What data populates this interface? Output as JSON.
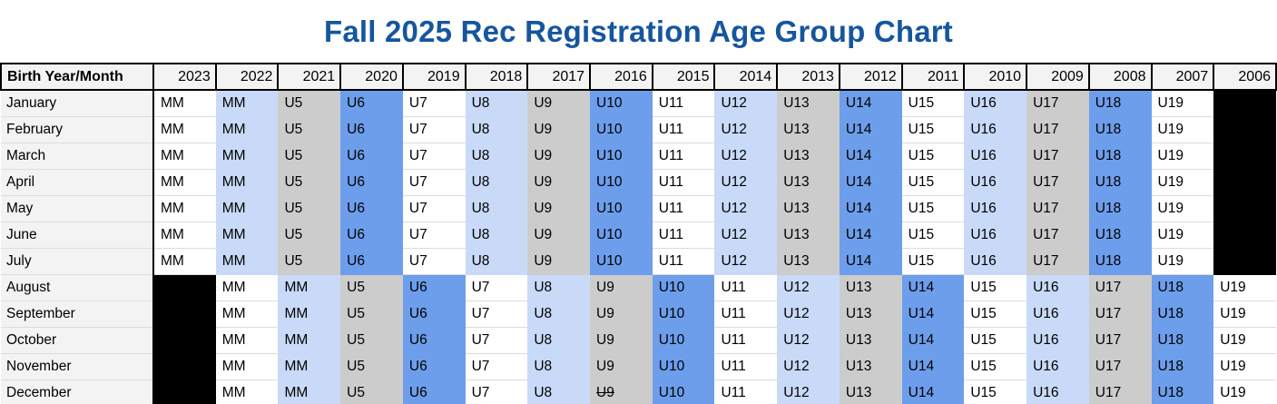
{
  "title": {
    "text": "Fall 2025 Rec Registration Age Group Chart"
  },
  "colors": {
    "title": "#15569e",
    "header_bg": "#f3f3f3",
    "month_bg": "#f3f3f3",
    "gridline": "#dcdcdc",
    "hard_border": "#000000",
    "page_bg": "#ffffff"
  },
  "palette": {
    "w": "#ffffff",
    "lb": "#c9daf8",
    "g": "#cccccc",
    "b": "#6d9eeb",
    "k": "#000000"
  },
  "header": {
    "corner_label": "Birth Year/Month",
    "years": [
      "2023",
      "2022",
      "2021",
      "2020",
      "2019",
      "2018",
      "2017",
      "2016",
      "2015",
      "2014",
      "2013",
      "2012",
      "2011",
      "2010",
      "2009",
      "2008",
      "2007",
      "2006"
    ]
  },
  "rows": [
    {
      "month": "January",
      "cells": [
        {
          "t": "MM",
          "c": "w"
        },
        {
          "t": "MM",
          "c": "lb"
        },
        {
          "t": "U5",
          "c": "g"
        },
        {
          "t": "U6",
          "c": "b"
        },
        {
          "t": "U7",
          "c": "w"
        },
        {
          "t": "U8",
          "c": "lb"
        },
        {
          "t": "U9",
          "c": "g"
        },
        {
          "t": "U10",
          "c": "b"
        },
        {
          "t": "U11",
          "c": "w"
        },
        {
          "t": "U12",
          "c": "lb"
        },
        {
          "t": "U13",
          "c": "g"
        },
        {
          "t": "U14",
          "c": "b"
        },
        {
          "t": "U15",
          "c": "w"
        },
        {
          "t": "U16",
          "c": "lb"
        },
        {
          "t": "U17",
          "c": "g"
        },
        {
          "t": "U18",
          "c": "b"
        },
        {
          "t": "U19",
          "c": "w"
        },
        {
          "t": "",
          "c": "k"
        }
      ]
    },
    {
      "month": "February",
      "cells": [
        {
          "t": "MM",
          "c": "w"
        },
        {
          "t": "MM",
          "c": "lb"
        },
        {
          "t": "U5",
          "c": "g"
        },
        {
          "t": "U6",
          "c": "b"
        },
        {
          "t": "U7",
          "c": "w"
        },
        {
          "t": "U8",
          "c": "lb"
        },
        {
          "t": "U9",
          "c": "g"
        },
        {
          "t": "U10",
          "c": "b"
        },
        {
          "t": "U11",
          "c": "w"
        },
        {
          "t": "U12",
          "c": "lb"
        },
        {
          "t": "U13",
          "c": "g"
        },
        {
          "t": "U14",
          "c": "b"
        },
        {
          "t": "U15",
          "c": "w"
        },
        {
          "t": "U16",
          "c": "lb"
        },
        {
          "t": "U17",
          "c": "g"
        },
        {
          "t": "U18",
          "c": "b"
        },
        {
          "t": "U19",
          "c": "w"
        },
        {
          "t": "",
          "c": "k"
        }
      ]
    },
    {
      "month": "March",
      "cells": [
        {
          "t": "MM",
          "c": "w"
        },
        {
          "t": "MM",
          "c": "lb"
        },
        {
          "t": "U5",
          "c": "g"
        },
        {
          "t": "U6",
          "c": "b"
        },
        {
          "t": "U7",
          "c": "w"
        },
        {
          "t": "U8",
          "c": "lb"
        },
        {
          "t": "U9",
          "c": "g"
        },
        {
          "t": "U10",
          "c": "b"
        },
        {
          "t": "U11",
          "c": "w"
        },
        {
          "t": "U12",
          "c": "lb"
        },
        {
          "t": "U13",
          "c": "g"
        },
        {
          "t": "U14",
          "c": "b"
        },
        {
          "t": "U15",
          "c": "w"
        },
        {
          "t": "U16",
          "c": "lb"
        },
        {
          "t": "U17",
          "c": "g"
        },
        {
          "t": "U18",
          "c": "b"
        },
        {
          "t": "U19",
          "c": "w"
        },
        {
          "t": "",
          "c": "k"
        }
      ]
    },
    {
      "month": "April",
      "cells": [
        {
          "t": "MM",
          "c": "w"
        },
        {
          "t": "MM",
          "c": "lb"
        },
        {
          "t": "U5",
          "c": "g"
        },
        {
          "t": "U6",
          "c": "b"
        },
        {
          "t": "U7",
          "c": "w"
        },
        {
          "t": "U8",
          "c": "lb"
        },
        {
          "t": "U9",
          "c": "g"
        },
        {
          "t": "U10",
          "c": "b"
        },
        {
          "t": "U11",
          "c": "w"
        },
        {
          "t": "U12",
          "c": "lb"
        },
        {
          "t": "U13",
          "c": "g"
        },
        {
          "t": "U14",
          "c": "b"
        },
        {
          "t": "U15",
          "c": "w"
        },
        {
          "t": "U16",
          "c": "lb"
        },
        {
          "t": "U17",
          "c": "g"
        },
        {
          "t": "U18",
          "c": "b"
        },
        {
          "t": "U19",
          "c": "w"
        },
        {
          "t": "",
          "c": "k"
        }
      ]
    },
    {
      "month": "May",
      "cells": [
        {
          "t": "MM",
          "c": "w"
        },
        {
          "t": "MM",
          "c": "lb"
        },
        {
          "t": "U5",
          "c": "g"
        },
        {
          "t": "U6",
          "c": "b"
        },
        {
          "t": "U7",
          "c": "w"
        },
        {
          "t": "U8",
          "c": "lb"
        },
        {
          "t": "U9",
          "c": "g"
        },
        {
          "t": "U10",
          "c": "b"
        },
        {
          "t": "U11",
          "c": "w"
        },
        {
          "t": "U12",
          "c": "lb"
        },
        {
          "t": "U13",
          "c": "g"
        },
        {
          "t": "U14",
          "c": "b"
        },
        {
          "t": "U15",
          "c": "w"
        },
        {
          "t": "U16",
          "c": "lb"
        },
        {
          "t": "U17",
          "c": "g"
        },
        {
          "t": "U18",
          "c": "b"
        },
        {
          "t": "U19",
          "c": "w"
        },
        {
          "t": "",
          "c": "k"
        }
      ]
    },
    {
      "month": "June",
      "cells": [
        {
          "t": "MM",
          "c": "w"
        },
        {
          "t": "MM",
          "c": "lb"
        },
        {
          "t": "U5",
          "c": "g"
        },
        {
          "t": "U6",
          "c": "b"
        },
        {
          "t": "U7",
          "c": "w"
        },
        {
          "t": "U8",
          "c": "lb"
        },
        {
          "t": "U9",
          "c": "g"
        },
        {
          "t": "U10",
          "c": "b"
        },
        {
          "t": "U11",
          "c": "w"
        },
        {
          "t": "U12",
          "c": "lb"
        },
        {
          "t": "U13",
          "c": "g"
        },
        {
          "t": "U14",
          "c": "b"
        },
        {
          "t": "U15",
          "c": "w"
        },
        {
          "t": "U16",
          "c": "lb"
        },
        {
          "t": "U17",
          "c": "g"
        },
        {
          "t": "U18",
          "c": "b"
        },
        {
          "t": "U19",
          "c": "w"
        },
        {
          "t": "",
          "c": "k"
        }
      ]
    },
    {
      "month": "July",
      "cells": [
        {
          "t": "MM",
          "c": "w"
        },
        {
          "t": "MM",
          "c": "lb"
        },
        {
          "t": "U5",
          "c": "g"
        },
        {
          "t": "U6",
          "c": "b"
        },
        {
          "t": "U7",
          "c": "w"
        },
        {
          "t": "U8",
          "c": "lb"
        },
        {
          "t": "U9",
          "c": "g"
        },
        {
          "t": "U10",
          "c": "b"
        },
        {
          "t": "U11",
          "c": "w"
        },
        {
          "t": "U12",
          "c": "lb"
        },
        {
          "t": "U13",
          "c": "g"
        },
        {
          "t": "U14",
          "c": "b"
        },
        {
          "t": "U15",
          "c": "w"
        },
        {
          "t": "U16",
          "c": "lb"
        },
        {
          "t": "U17",
          "c": "g"
        },
        {
          "t": "U18",
          "c": "b"
        },
        {
          "t": "U19",
          "c": "w"
        },
        {
          "t": "",
          "c": "k"
        }
      ]
    },
    {
      "month": "August",
      "cells": [
        {
          "t": "",
          "c": "k"
        },
        {
          "t": "MM",
          "c": "w"
        },
        {
          "t": "MM",
          "c": "lb"
        },
        {
          "t": "U5",
          "c": "g"
        },
        {
          "t": "U6",
          "c": "b"
        },
        {
          "t": "U7",
          "c": "w"
        },
        {
          "t": "U8",
          "c": "lb"
        },
        {
          "t": "U9",
          "c": "g"
        },
        {
          "t": "U10",
          "c": "b"
        },
        {
          "t": "U11",
          "c": "w"
        },
        {
          "t": "U12",
          "c": "lb"
        },
        {
          "t": "U13",
          "c": "g"
        },
        {
          "t": "U14",
          "c": "b"
        },
        {
          "t": "U15",
          "c": "w"
        },
        {
          "t": "U16",
          "c": "lb"
        },
        {
          "t": "U17",
          "c": "g"
        },
        {
          "t": "U18",
          "c": "b"
        },
        {
          "t": "U19",
          "c": "w"
        }
      ]
    },
    {
      "month": "September",
      "cells": [
        {
          "t": "",
          "c": "k"
        },
        {
          "t": "MM",
          "c": "w"
        },
        {
          "t": "MM",
          "c": "lb"
        },
        {
          "t": "U5",
          "c": "g"
        },
        {
          "t": "U6",
          "c": "b"
        },
        {
          "t": "U7",
          "c": "w"
        },
        {
          "t": "U8",
          "c": "lb"
        },
        {
          "t": "U9",
          "c": "g"
        },
        {
          "t": "U10",
          "c": "b"
        },
        {
          "t": "U11",
          "c": "w"
        },
        {
          "t": "U12",
          "c": "lb"
        },
        {
          "t": "U13",
          "c": "g"
        },
        {
          "t": "U14",
          "c": "b"
        },
        {
          "t": "U15",
          "c": "w"
        },
        {
          "t": "U16",
          "c": "lb"
        },
        {
          "t": "U17",
          "c": "g"
        },
        {
          "t": "U18",
          "c": "b"
        },
        {
          "t": "U19",
          "c": "w"
        }
      ]
    },
    {
      "month": "October",
      "cells": [
        {
          "t": "",
          "c": "k"
        },
        {
          "t": "MM",
          "c": "w"
        },
        {
          "t": "MM",
          "c": "lb"
        },
        {
          "t": "U5",
          "c": "g"
        },
        {
          "t": "U6",
          "c": "b"
        },
        {
          "t": "U7",
          "c": "w"
        },
        {
          "t": "U8",
          "c": "lb"
        },
        {
          "t": "U9",
          "c": "g"
        },
        {
          "t": "U10",
          "c": "b"
        },
        {
          "t": "U11",
          "c": "w"
        },
        {
          "t": "U12",
          "c": "lb"
        },
        {
          "t": "U13",
          "c": "g"
        },
        {
          "t": "U14",
          "c": "b"
        },
        {
          "t": "U15",
          "c": "w"
        },
        {
          "t": "U16",
          "c": "lb"
        },
        {
          "t": "U17",
          "c": "g"
        },
        {
          "t": "U18",
          "c": "b"
        },
        {
          "t": "U19",
          "c": "w"
        }
      ]
    },
    {
      "month": "November",
      "cells": [
        {
          "t": "",
          "c": "k"
        },
        {
          "t": "MM",
          "c": "w"
        },
        {
          "t": "MM",
          "c": "lb"
        },
        {
          "t": "U5",
          "c": "g"
        },
        {
          "t": "U6",
          "c": "b"
        },
        {
          "t": "U7",
          "c": "w"
        },
        {
          "t": "U8",
          "c": "lb"
        },
        {
          "t": "U9",
          "c": "g"
        },
        {
          "t": "U10",
          "c": "b"
        },
        {
          "t": "U11",
          "c": "w"
        },
        {
          "t": "U12",
          "c": "lb"
        },
        {
          "t": "U13",
          "c": "g"
        },
        {
          "t": "U14",
          "c": "b"
        },
        {
          "t": "U15",
          "c": "w"
        },
        {
          "t": "U16",
          "c": "lb"
        },
        {
          "t": "U17",
          "c": "g"
        },
        {
          "t": "U18",
          "c": "b"
        },
        {
          "t": "U19",
          "c": "w"
        }
      ]
    },
    {
      "month": "December",
      "cells": [
        {
          "t": "",
          "c": "k"
        },
        {
          "t": "MM",
          "c": "w"
        },
        {
          "t": "MM",
          "c": "lb"
        },
        {
          "t": "U5",
          "c": "g"
        },
        {
          "t": "U6",
          "c": "b"
        },
        {
          "t": "U7",
          "c": "w"
        },
        {
          "t": "U8",
          "c": "lb"
        },
        {
          "t": "U9",
          "c": "g",
          "strike": true
        },
        {
          "t": "U10",
          "c": "b"
        },
        {
          "t": "U11",
          "c": "w"
        },
        {
          "t": "U12",
          "c": "lb"
        },
        {
          "t": "U13",
          "c": "g"
        },
        {
          "t": "U14",
          "c": "b"
        },
        {
          "t": "U15",
          "c": "w"
        },
        {
          "t": "U16",
          "c": "lb"
        },
        {
          "t": "U17",
          "c": "g"
        },
        {
          "t": "U18",
          "c": "b"
        },
        {
          "t": "U19",
          "c": "w"
        }
      ]
    }
  ],
  "chart_data": {
    "type": "table",
    "title": "Fall 2025 Rec Registration Age Group Chart",
    "columns": [
      "Birth Year/Month",
      "2023",
      "2022",
      "2021",
      "2020",
      "2019",
      "2018",
      "2017",
      "2016",
      "2015",
      "2014",
      "2013",
      "2012",
      "2011",
      "2010",
      "2009",
      "2008",
      "2007",
      "2006"
    ],
    "rows": [
      [
        "January",
        "MM",
        "MM",
        "U5",
        "U6",
        "U7",
        "U8",
        "U9",
        "U10",
        "U11",
        "U12",
        "U13",
        "U14",
        "U15",
        "U16",
        "U17",
        "U18",
        "U19",
        null
      ],
      [
        "February",
        "MM",
        "MM",
        "U5",
        "U6",
        "U7",
        "U8",
        "U9",
        "U10",
        "U11",
        "U12",
        "U13",
        "U14",
        "U15",
        "U16",
        "U17",
        "U18",
        "U19",
        null
      ],
      [
        "March",
        "MM",
        "MM",
        "U5",
        "U6",
        "U7",
        "U8",
        "U9",
        "U10",
        "U11",
        "U12",
        "U13",
        "U14",
        "U15",
        "U16",
        "U17",
        "U18",
        "U19",
        null
      ],
      [
        "April",
        "MM",
        "MM",
        "U5",
        "U6",
        "U7",
        "U8",
        "U9",
        "U10",
        "U11",
        "U12",
        "U13",
        "U14",
        "U15",
        "U16",
        "U17",
        "U18",
        "U19",
        null
      ],
      [
        "May",
        "MM",
        "MM",
        "U5",
        "U6",
        "U7",
        "U8",
        "U9",
        "U10",
        "U11",
        "U12",
        "U13",
        "U14",
        "U15",
        "U16",
        "U17",
        "U18",
        "U19",
        null
      ],
      [
        "June",
        "MM",
        "MM",
        "U5",
        "U6",
        "U7",
        "U8",
        "U9",
        "U10",
        "U11",
        "U12",
        "U13",
        "U14",
        "U15",
        "U16",
        "U17",
        "U18",
        "U19",
        null
      ],
      [
        "July",
        "MM",
        "MM",
        "U5",
        "U6",
        "U7",
        "U8",
        "U9",
        "U10",
        "U11",
        "U12",
        "U13",
        "U14",
        "U15",
        "U16",
        "U17",
        "U18",
        "U19",
        null
      ],
      [
        "August",
        null,
        "MM",
        "MM",
        "U5",
        "U6",
        "U7",
        "U8",
        "U9",
        "U10",
        "U11",
        "U12",
        "U13",
        "U14",
        "U15",
        "U16",
        "U17",
        "U18",
        "U19"
      ],
      [
        "September",
        null,
        "MM",
        "MM",
        "U5",
        "U6",
        "U7",
        "U8",
        "U9",
        "U10",
        "U11",
        "U12",
        "U13",
        "U14",
        "U15",
        "U16",
        "U17",
        "U18",
        "U19"
      ],
      [
        "October",
        null,
        "MM",
        "MM",
        "U5",
        "U6",
        "U7",
        "U8",
        "U9",
        "U10",
        "U11",
        "U12",
        "U13",
        "U14",
        "U15",
        "U16",
        "U17",
        "U18",
        "U19"
      ],
      [
        "November",
        null,
        "MM",
        "MM",
        "U5",
        "U6",
        "U7",
        "U8",
        "U9",
        "U10",
        "U11",
        "U12",
        "U13",
        "U14",
        "U15",
        "U16",
        "U17",
        "U18",
        "U19"
      ],
      [
        "December",
        null,
        "MM",
        "MM",
        "U5",
        "U6",
        "U7",
        "U8",
        "U9",
        "U10",
        "U11",
        "U12",
        "U13",
        "U14",
        "U15",
        "U16",
        "U17",
        "U18",
        "U19"
      ]
    ],
    "annotations": [
      "null cells are blacked out (solid black fill)",
      "December U9 is shown with strikethrough",
      "cell fill cycle per age group: white #ffffff, light blue #c9daf8, gray #cccccc, blue #6d9eeb"
    ],
    "legend_position": "none",
    "grid": true
  }
}
